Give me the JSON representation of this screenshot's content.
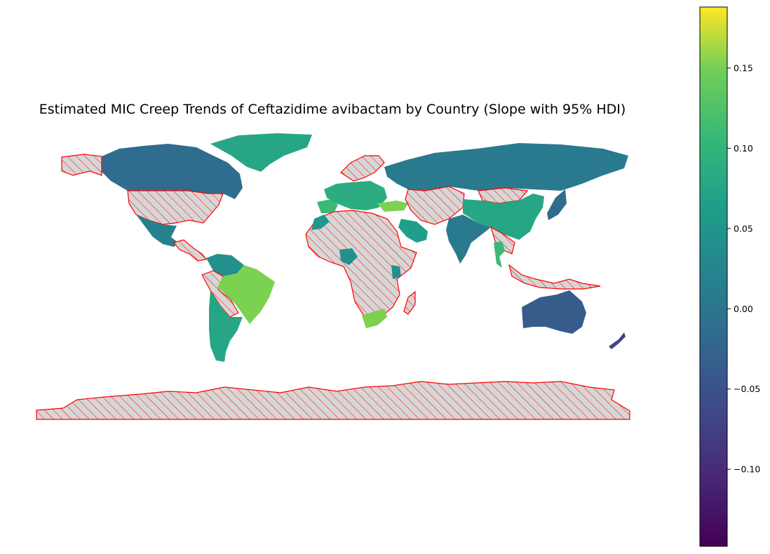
{
  "chart_data": {
    "type": "choropleth",
    "title": "Estimated MIC Creep Trends of Ceftazidime avibactam by Country (Slope with 95% HDI)",
    "colormap": "viridis",
    "colorbar": {
      "min": -0.148,
      "max": 0.188,
      "ticks": [
        -0.1,
        -0.05,
        0.0,
        0.05,
        0.1,
        0.15
      ],
      "tick_labels": [
        "−0.10",
        "−0.05",
        "0.00",
        "0.05",
        "0.10",
        "0.15"
      ],
      "placement": "right"
    },
    "no_data_style": {
      "fill": "#d6d6d6",
      "hatch": "////",
      "edge": "#ff0000"
    },
    "regions": [
      {
        "id": "greenland",
        "value": 0.05
      },
      {
        "id": "canada",
        "value": -0.03
      },
      {
        "id": "alaska",
        "value": null
      },
      {
        "id": "usa",
        "value": null
      },
      {
        "id": "mexico",
        "value": 0.0
      },
      {
        "id": "central-america",
        "value": null
      },
      {
        "id": "colombia-venezuela",
        "value": 0.02
      },
      {
        "id": "peru-bolivia",
        "value": null
      },
      {
        "id": "brazil",
        "value": 0.12
      },
      {
        "id": "argentina-chile",
        "value": 0.05
      },
      {
        "id": "europe-west",
        "value": 0.06
      },
      {
        "id": "iberia",
        "value": 0.08
      },
      {
        "id": "scandinavia",
        "value": null
      },
      {
        "id": "turkey",
        "value": 0.12
      },
      {
        "id": "russia",
        "value": -0.01
      },
      {
        "id": "central-asia",
        "value": null
      },
      {
        "id": "mongolia",
        "value": null
      },
      {
        "id": "china",
        "value": 0.05
      },
      {
        "id": "india",
        "value": -0.01
      },
      {
        "id": "saudi-arabia",
        "value": 0.04
      },
      {
        "id": "japan",
        "value": -0.03
      },
      {
        "id": "south-east-asia",
        "value": null
      },
      {
        "id": "thailand",
        "value": 0.08
      },
      {
        "id": "africa",
        "value": null
      },
      {
        "id": "morocco",
        "value": 0.03
      },
      {
        "id": "nigeria",
        "value": 0.02
      },
      {
        "id": "kenya",
        "value": 0.02
      },
      {
        "id": "south-africa",
        "value": 0.12
      },
      {
        "id": "madagascar",
        "value": null
      },
      {
        "id": "indonesia",
        "value": null
      },
      {
        "id": "australia",
        "value": -0.05
      },
      {
        "id": "new-zealand",
        "value": -0.08
      },
      {
        "id": "antarctica",
        "value": null
      }
    ]
  }
}
